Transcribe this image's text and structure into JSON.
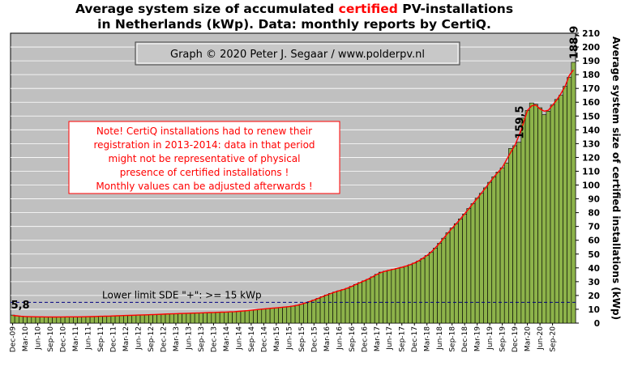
{
  "chart_data": {
    "type": "bar",
    "title_part1": "Average system size of accumulated ",
    "title_highlight": "certified",
    "title_part2": " PV-installations",
    "title_line2": "in Netherlands (kWp). Data: monthly reports by CertiQ.",
    "ylabel": "Average system size of certified installations (kWp)",
    "ylim": [
      0,
      210
    ],
    "yticks": [
      0,
      10,
      20,
      30,
      40,
      50,
      60,
      70,
      80,
      90,
      100,
      110,
      120,
      130,
      140,
      150,
      160,
      170,
      180,
      190,
      200,
      210
    ],
    "grid": true,
    "credit": "Graph © 2020 Peter J. Segaar / www.polderpv.nl",
    "note_lines": [
      "Note! CertiQ installations had to renew their",
      "registration in 2013-2014:  data in that period",
      "might not be representative of physical",
      "presence of certified installations  !",
      "Monthly values can be adjusted afterwards !"
    ],
    "reference_line": {
      "value": 15,
      "label": "Lower limit  SDE \"+\":   >=  15 kWp"
    },
    "annotations": [
      {
        "text": "5,8",
        "x": "Dec-09"
      },
      {
        "text": "159,5",
        "x": "Jan-20"
      },
      {
        "text": "188,9",
        "x": "Dec-20"
      }
    ],
    "x_tick_labels": [
      "Dec-09",
      "Mar-10",
      "Jun-10",
      "Sep-10",
      "Dec-10",
      "Mar-11",
      "Jun-11",
      "Sep-11",
      "Dec-11",
      "Mar-12",
      "Jun-12",
      "Sep-12",
      "Dec-12",
      "Mar-13",
      "Jun-13",
      "Sep-13",
      "Dec-13",
      "Mar-14",
      "Jun-14",
      "Sep-14",
      "Dec-14",
      "Mar-15",
      "Jun-15",
      "Sep-15",
      "Dec-15",
      "Mar-16",
      "Jun-16",
      "Sep-16",
      "Dec-16",
      "Mar-17",
      "Jun-17",
      "Sep-17",
      "Dec-17",
      "Mar-18",
      "Jun-18",
      "Sep-18",
      "Dec-18",
      "Mar-19",
      "Jun-19",
      "Sep-19",
      "Dec-19",
      "Mar-20",
      "Jun-20",
      "Sep-20"
    ],
    "first_month": "Dec-09",
    "values": [
      5.8,
      5.2,
      4.9,
      4.7,
      4.6,
      4.6,
      4.5,
      4.5,
      4.5,
      4.4,
      4.4,
      4.4,
      4.5,
      4.5,
      4.5,
      4.5,
      4.5,
      4.6,
      4.6,
      4.7,
      4.8,
      4.9,
      5.0,
      5.0,
      5.2,
      5.3,
      5.4,
      5.5,
      5.6,
      5.7,
      5.8,
      5.9,
      6.0,
      6.1,
      6.2,
      6.3,
      6.5,
      6.6,
      6.7,
      6.8,
      6.9,
      7.0,
      7.1,
      7.2,
      7.3,
      7.4,
      7.5,
      7.6,
      7.7,
      7.8,
      7.9,
      8.0,
      8.1,
      8.3,
      8.5,
      8.7,
      9.0,
      9.3,
      9.6,
      9.9,
      10.2,
      10.5,
      10.8,
      11.0,
      11.3,
      11.6,
      11.9,
      12.3,
      12.9,
      13.7,
      14.6,
      15.6,
      16.7,
      17.9,
      19.1,
      20.3,
      21.5,
      22.5,
      23.4,
      24.3,
      25.2,
      26.6,
      28.0,
      29.4,
      30.6,
      31.8,
      33.5,
      35.3,
      36.9,
      37.6,
      38.3,
      39.0,
      39.7,
      40.4,
      41.2,
      42.3,
      43.5,
      45.0,
      46.8,
      48.9,
      51.3,
      54.3,
      57.8,
      61.5,
      65.4,
      68.8,
      72.0,
      75.5,
      79.0,
      83.0,
      86.5,
      90.5,
      94.0,
      98.0,
      102.0,
      106.0,
      109.5,
      112.5,
      116.0,
      126.5,
      128.5,
      131.0,
      148.5,
      154.0,
      159.5,
      158.5,
      156.0,
      151.0,
      153.5,
      158.0,
      162.0,
      165.0,
      171.5,
      178.0,
      188.9
    ]
  }
}
